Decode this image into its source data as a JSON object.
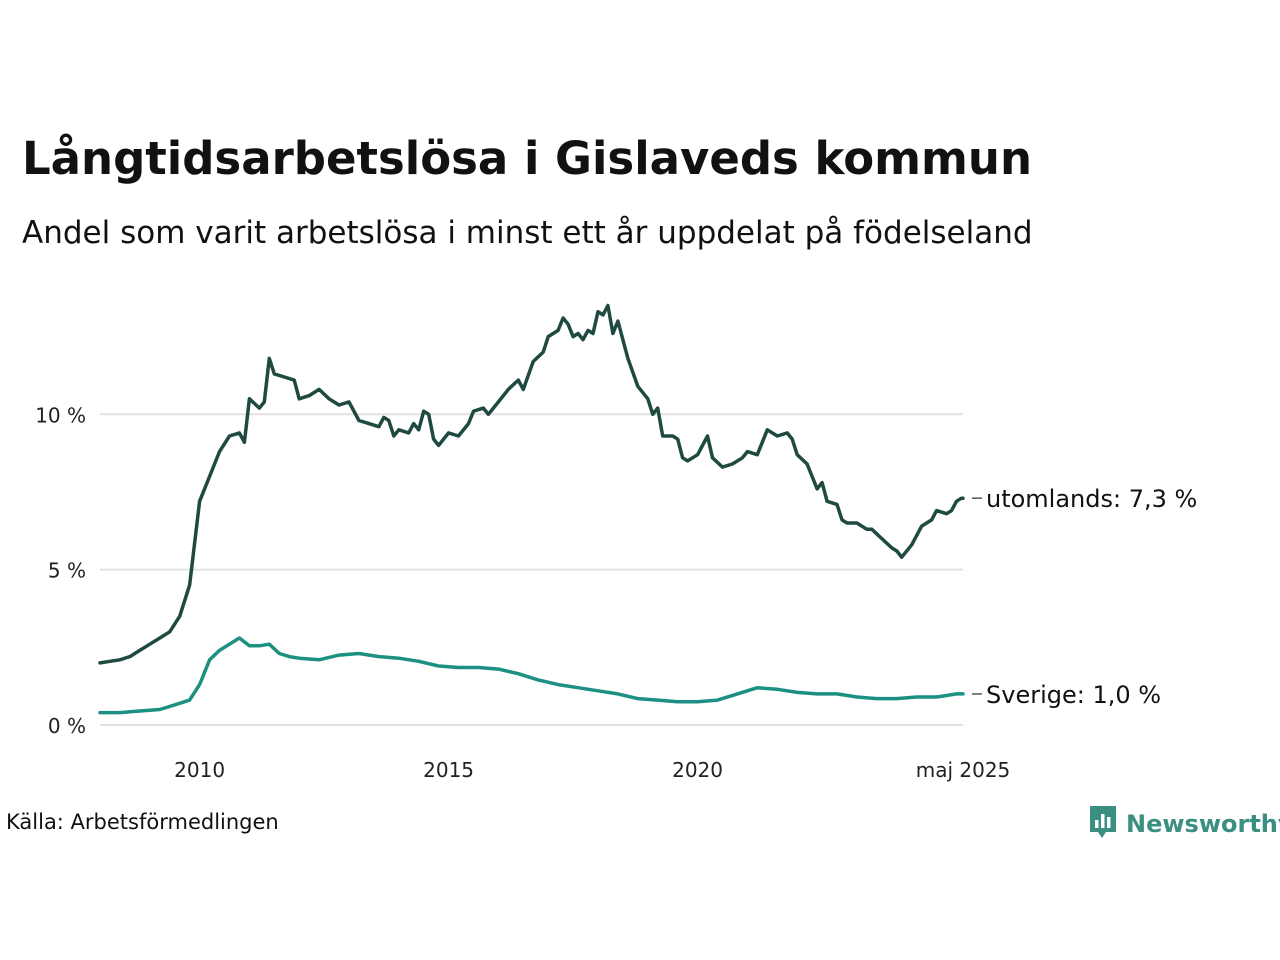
{
  "title": "Långtidsarbetslösa i Gislaveds kommun",
  "subtitle": "Andel som varit arbetslösa i minst ett år uppdelat på födelseland",
  "source": "Källa: Arbetsförmedlingen",
  "brand": {
    "name": "Newsworthy",
    "color": "#3a8f81",
    "icon": "bar-chart-icon"
  },
  "chart_data": {
    "type": "line",
    "title": "Långtidsarbetslösa i Gislaveds kommun",
    "subtitle": "Andel som varit arbetslösa i minst ett år uppdelat på födelseland",
    "xlabel": "",
    "ylabel": "",
    "xlim": [
      2008.0,
      2025.33
    ],
    "ylim": [
      0,
      14
    ],
    "grid": true,
    "legend": "line-end labels",
    "x_ticks": [
      {
        "value": 2010,
        "label": "2010"
      },
      {
        "value": 2015,
        "label": "2015"
      },
      {
        "value": 2020,
        "label": "2020"
      },
      {
        "value": 2025.33,
        "label": "maj 2025"
      }
    ],
    "y_ticks": [
      {
        "value": 0,
        "label": "0 %"
      },
      {
        "value": 5,
        "label": "5 %"
      },
      {
        "value": 10,
        "label": "10 %"
      }
    ],
    "series": [
      {
        "name": "utomlands",
        "end_label": "utomlands: 7,3 %",
        "color": "#1f4a42",
        "points": [
          [
            2008.0,
            2.0
          ],
          [
            2008.2,
            2.05
          ],
          [
            2008.4,
            2.1
          ],
          [
            2008.6,
            2.2
          ],
          [
            2008.8,
            2.4
          ],
          [
            2009.0,
            2.6
          ],
          [
            2009.2,
            2.8
          ],
          [
            2009.4,
            3.0
          ],
          [
            2009.6,
            3.5
          ],
          [
            2009.8,
            4.5
          ],
          [
            2010.0,
            7.2
          ],
          [
            2010.2,
            8.0
          ],
          [
            2010.4,
            8.8
          ],
          [
            2010.6,
            9.3
          ],
          [
            2010.8,
            9.4
          ],
          [
            2010.9,
            9.1
          ],
          [
            2011.0,
            10.5
          ],
          [
            2011.2,
            10.2
          ],
          [
            2011.3,
            10.4
          ],
          [
            2011.4,
            11.8
          ],
          [
            2011.5,
            11.3
          ],
          [
            2011.7,
            11.2
          ],
          [
            2011.9,
            11.1
          ],
          [
            2012.0,
            10.5
          ],
          [
            2012.2,
            10.6
          ],
          [
            2012.4,
            10.8
          ],
          [
            2012.6,
            10.5
          ],
          [
            2012.8,
            10.3
          ],
          [
            2013.0,
            10.4
          ],
          [
            2013.2,
            9.8
          ],
          [
            2013.4,
            9.7
          ],
          [
            2013.6,
            9.6
          ],
          [
            2013.7,
            9.9
          ],
          [
            2013.8,
            9.8
          ],
          [
            2013.9,
            9.3
          ],
          [
            2014.0,
            9.5
          ],
          [
            2014.2,
            9.4
          ],
          [
            2014.3,
            9.7
          ],
          [
            2014.4,
            9.5
          ],
          [
            2014.5,
            10.1
          ],
          [
            2014.6,
            10.0
          ],
          [
            2014.7,
            9.2
          ],
          [
            2014.8,
            9.0
          ],
          [
            2015.0,
            9.4
          ],
          [
            2015.2,
            9.3
          ],
          [
            2015.4,
            9.7
          ],
          [
            2015.5,
            10.1
          ],
          [
            2015.7,
            10.2
          ],
          [
            2015.8,
            10.0
          ],
          [
            2016.0,
            10.4
          ],
          [
            2016.2,
            10.8
          ],
          [
            2016.4,
            11.1
          ],
          [
            2016.5,
            10.8
          ],
          [
            2016.7,
            11.7
          ],
          [
            2016.9,
            12.0
          ],
          [
            2017.0,
            12.5
          ],
          [
            2017.2,
            12.7
          ],
          [
            2017.3,
            13.1
          ],
          [
            2017.4,
            12.9
          ],
          [
            2017.5,
            12.5
          ],
          [
            2017.6,
            12.6
          ],
          [
            2017.7,
            12.4
          ],
          [
            2017.8,
            12.7
          ],
          [
            2017.9,
            12.6
          ],
          [
            2018.0,
            13.3
          ],
          [
            2018.1,
            13.2
          ],
          [
            2018.2,
            13.5
          ],
          [
            2018.3,
            12.6
          ],
          [
            2018.4,
            13.0
          ],
          [
            2018.6,
            11.8
          ],
          [
            2018.8,
            10.9
          ],
          [
            2019.0,
            10.5
          ],
          [
            2019.1,
            10.0
          ],
          [
            2019.2,
            10.2
          ],
          [
            2019.3,
            9.3
          ],
          [
            2019.5,
            9.3
          ],
          [
            2019.6,
            9.2
          ],
          [
            2019.7,
            8.6
          ],
          [
            2019.8,
            8.5
          ],
          [
            2020.0,
            8.7
          ],
          [
            2020.2,
            9.3
          ],
          [
            2020.3,
            8.6
          ],
          [
            2020.5,
            8.3
          ],
          [
            2020.7,
            8.4
          ],
          [
            2020.9,
            8.6
          ],
          [
            2021.0,
            8.8
          ],
          [
            2021.2,
            8.7
          ],
          [
            2021.4,
            9.5
          ],
          [
            2021.6,
            9.3
          ],
          [
            2021.8,
            9.4
          ],
          [
            2021.9,
            9.2
          ],
          [
            2022.0,
            8.7
          ],
          [
            2022.2,
            8.4
          ],
          [
            2022.4,
            7.6
          ],
          [
            2022.5,
            7.8
          ],
          [
            2022.6,
            7.2
          ],
          [
            2022.8,
            7.1
          ],
          [
            2022.9,
            6.6
          ],
          [
            2023.0,
            6.5
          ],
          [
            2023.2,
            6.5
          ],
          [
            2023.4,
            6.3
          ],
          [
            2023.5,
            6.3
          ],
          [
            2023.7,
            6.0
          ],
          [
            2023.9,
            5.7
          ],
          [
            2024.0,
            5.6
          ],
          [
            2024.1,
            5.4
          ],
          [
            2024.3,
            5.8
          ],
          [
            2024.5,
            6.4
          ],
          [
            2024.7,
            6.6
          ],
          [
            2024.8,
            6.9
          ],
          [
            2025.0,
            6.8
          ],
          [
            2025.1,
            6.9
          ],
          [
            2025.2,
            7.2
          ],
          [
            2025.3,
            7.3
          ],
          [
            2025.33,
            7.3
          ]
        ]
      },
      {
        "name": "Sverige",
        "end_label": "Sverige: 1,0 %",
        "color": "#1c9183",
        "points": [
          [
            2008.0,
            0.4
          ],
          [
            2008.4,
            0.4
          ],
          [
            2008.8,
            0.45
          ],
          [
            2009.2,
            0.5
          ],
          [
            2009.6,
            0.7
          ],
          [
            2009.8,
            0.8
          ],
          [
            2010.0,
            1.3
          ],
          [
            2010.2,
            2.1
          ],
          [
            2010.4,
            2.4
          ],
          [
            2010.6,
            2.6
          ],
          [
            2010.8,
            2.8
          ],
          [
            2011.0,
            2.55
          ],
          [
            2011.2,
            2.55
          ],
          [
            2011.4,
            2.6
          ],
          [
            2011.6,
            2.3
          ],
          [
            2011.8,
            2.2
          ],
          [
            2012.0,
            2.15
          ],
          [
            2012.4,
            2.1
          ],
          [
            2012.8,
            2.25
          ],
          [
            2013.2,
            2.3
          ],
          [
            2013.6,
            2.2
          ],
          [
            2014.0,
            2.15
          ],
          [
            2014.4,
            2.05
          ],
          [
            2014.8,
            1.9
          ],
          [
            2015.2,
            1.85
          ],
          [
            2015.6,
            1.85
          ],
          [
            2016.0,
            1.8
          ],
          [
            2016.4,
            1.65
          ],
          [
            2016.8,
            1.45
          ],
          [
            2017.2,
            1.3
          ],
          [
            2017.6,
            1.2
          ],
          [
            2018.0,
            1.1
          ],
          [
            2018.4,
            1.0
          ],
          [
            2018.8,
            0.85
          ],
          [
            2019.2,
            0.8
          ],
          [
            2019.6,
            0.75
          ],
          [
            2020.0,
            0.75
          ],
          [
            2020.4,
            0.8
          ],
          [
            2020.8,
            1.0
          ],
          [
            2021.2,
            1.2
          ],
          [
            2021.6,
            1.15
          ],
          [
            2022.0,
            1.05
          ],
          [
            2022.4,
            1.0
          ],
          [
            2022.8,
            1.0
          ],
          [
            2023.2,
            0.9
          ],
          [
            2023.6,
            0.85
          ],
          [
            2024.0,
            0.85
          ],
          [
            2024.4,
            0.9
          ],
          [
            2024.8,
            0.9
          ],
          [
            2025.0,
            0.95
          ],
          [
            2025.2,
            1.0
          ],
          [
            2025.33,
            1.0
          ]
        ]
      }
    ]
  }
}
